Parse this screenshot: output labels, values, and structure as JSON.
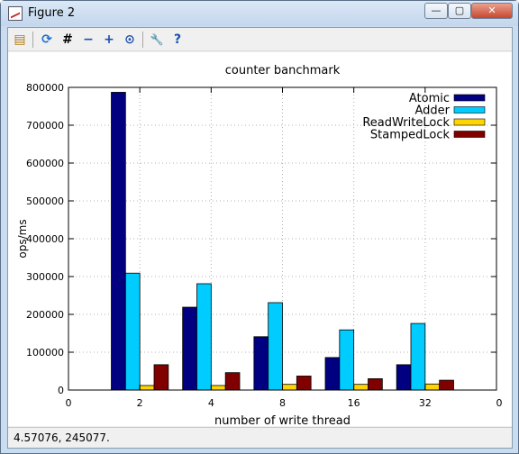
{
  "window": {
    "title": "Figure 2"
  },
  "window_controls": {
    "minimize": "—",
    "maximize": "▢",
    "close": "✕"
  },
  "toolbar": {
    "icons": [
      "open-icon",
      "refresh-icon",
      "grid-icon",
      "zoom-out-icon",
      "zoom-in-icon",
      "zoom-reset-icon",
      "settings-icon",
      "help-icon"
    ],
    "glyphs": [
      "▤",
      "⟳",
      "#",
      "−",
      "+",
      "⊙",
      "🔧",
      "?"
    ]
  },
  "status": {
    "text": "4.57076,  245077."
  },
  "colors": {
    "Atomic": "#000080",
    "Adder": "#00ccff",
    "ReadWriteLock": "#ffd400",
    "StampedLock": "#800000"
  },
  "chart_data": {
    "type": "bar",
    "title": "counter banchmark",
    "xlabel": "number of write thread",
    "ylabel": "ops/ms",
    "categories": [
      "2",
      "4",
      "8",
      "16",
      "32"
    ],
    "x_edge_ticks": [
      "0",
      "0"
    ],
    "ylim": [
      0,
      800000
    ],
    "yticks": [
      0,
      100000,
      200000,
      300000,
      400000,
      500000,
      600000,
      700000,
      800000
    ],
    "grid": true,
    "legend_position": "top-right",
    "series": [
      {
        "name": "Atomic",
        "values": [
          787000,
          219000,
          141000,
          86000,
          67000
        ]
      },
      {
        "name": "Adder",
        "values": [
          309000,
          281000,
          231000,
          159000,
          176000
        ]
      },
      {
        "name": "ReadWriteLock",
        "values": [
          12000,
          12000,
          15000,
          15000,
          16000
        ]
      },
      {
        "name": "StampedLock",
        "values": [
          67000,
          46000,
          37000,
          30000,
          26000
        ]
      }
    ]
  }
}
